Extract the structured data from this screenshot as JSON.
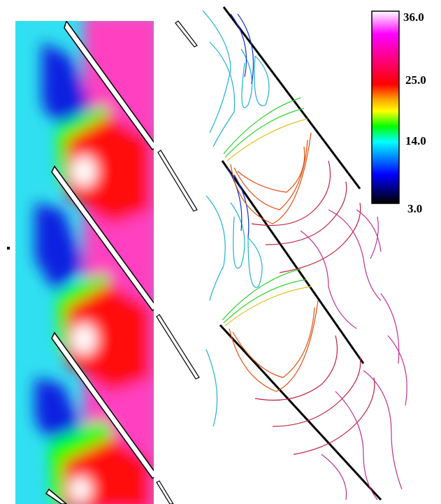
{
  "colorbar": {
    "ticks": [
      "36.0",
      "25.0",
      "14.0",
      "3.0"
    ],
    "colors": [
      "#ffffff",
      "#ff00ff",
      "#ff0000",
      "#ffa500",
      "#ffff00",
      "#00ff00",
      "#00ffff",
      "#0000ff",
      "#000000"
    ]
  },
  "left_panel": {
    "type": "filled-contour"
  },
  "right_panel": {
    "type": "contour-lines"
  },
  "colors": {
    "cyan": "#30e0f0",
    "blue": "#1020e0",
    "green": "#00ff00",
    "red": "#ff1010",
    "magenta": "#ff40c0",
    "white": "#ffffff"
  }
}
